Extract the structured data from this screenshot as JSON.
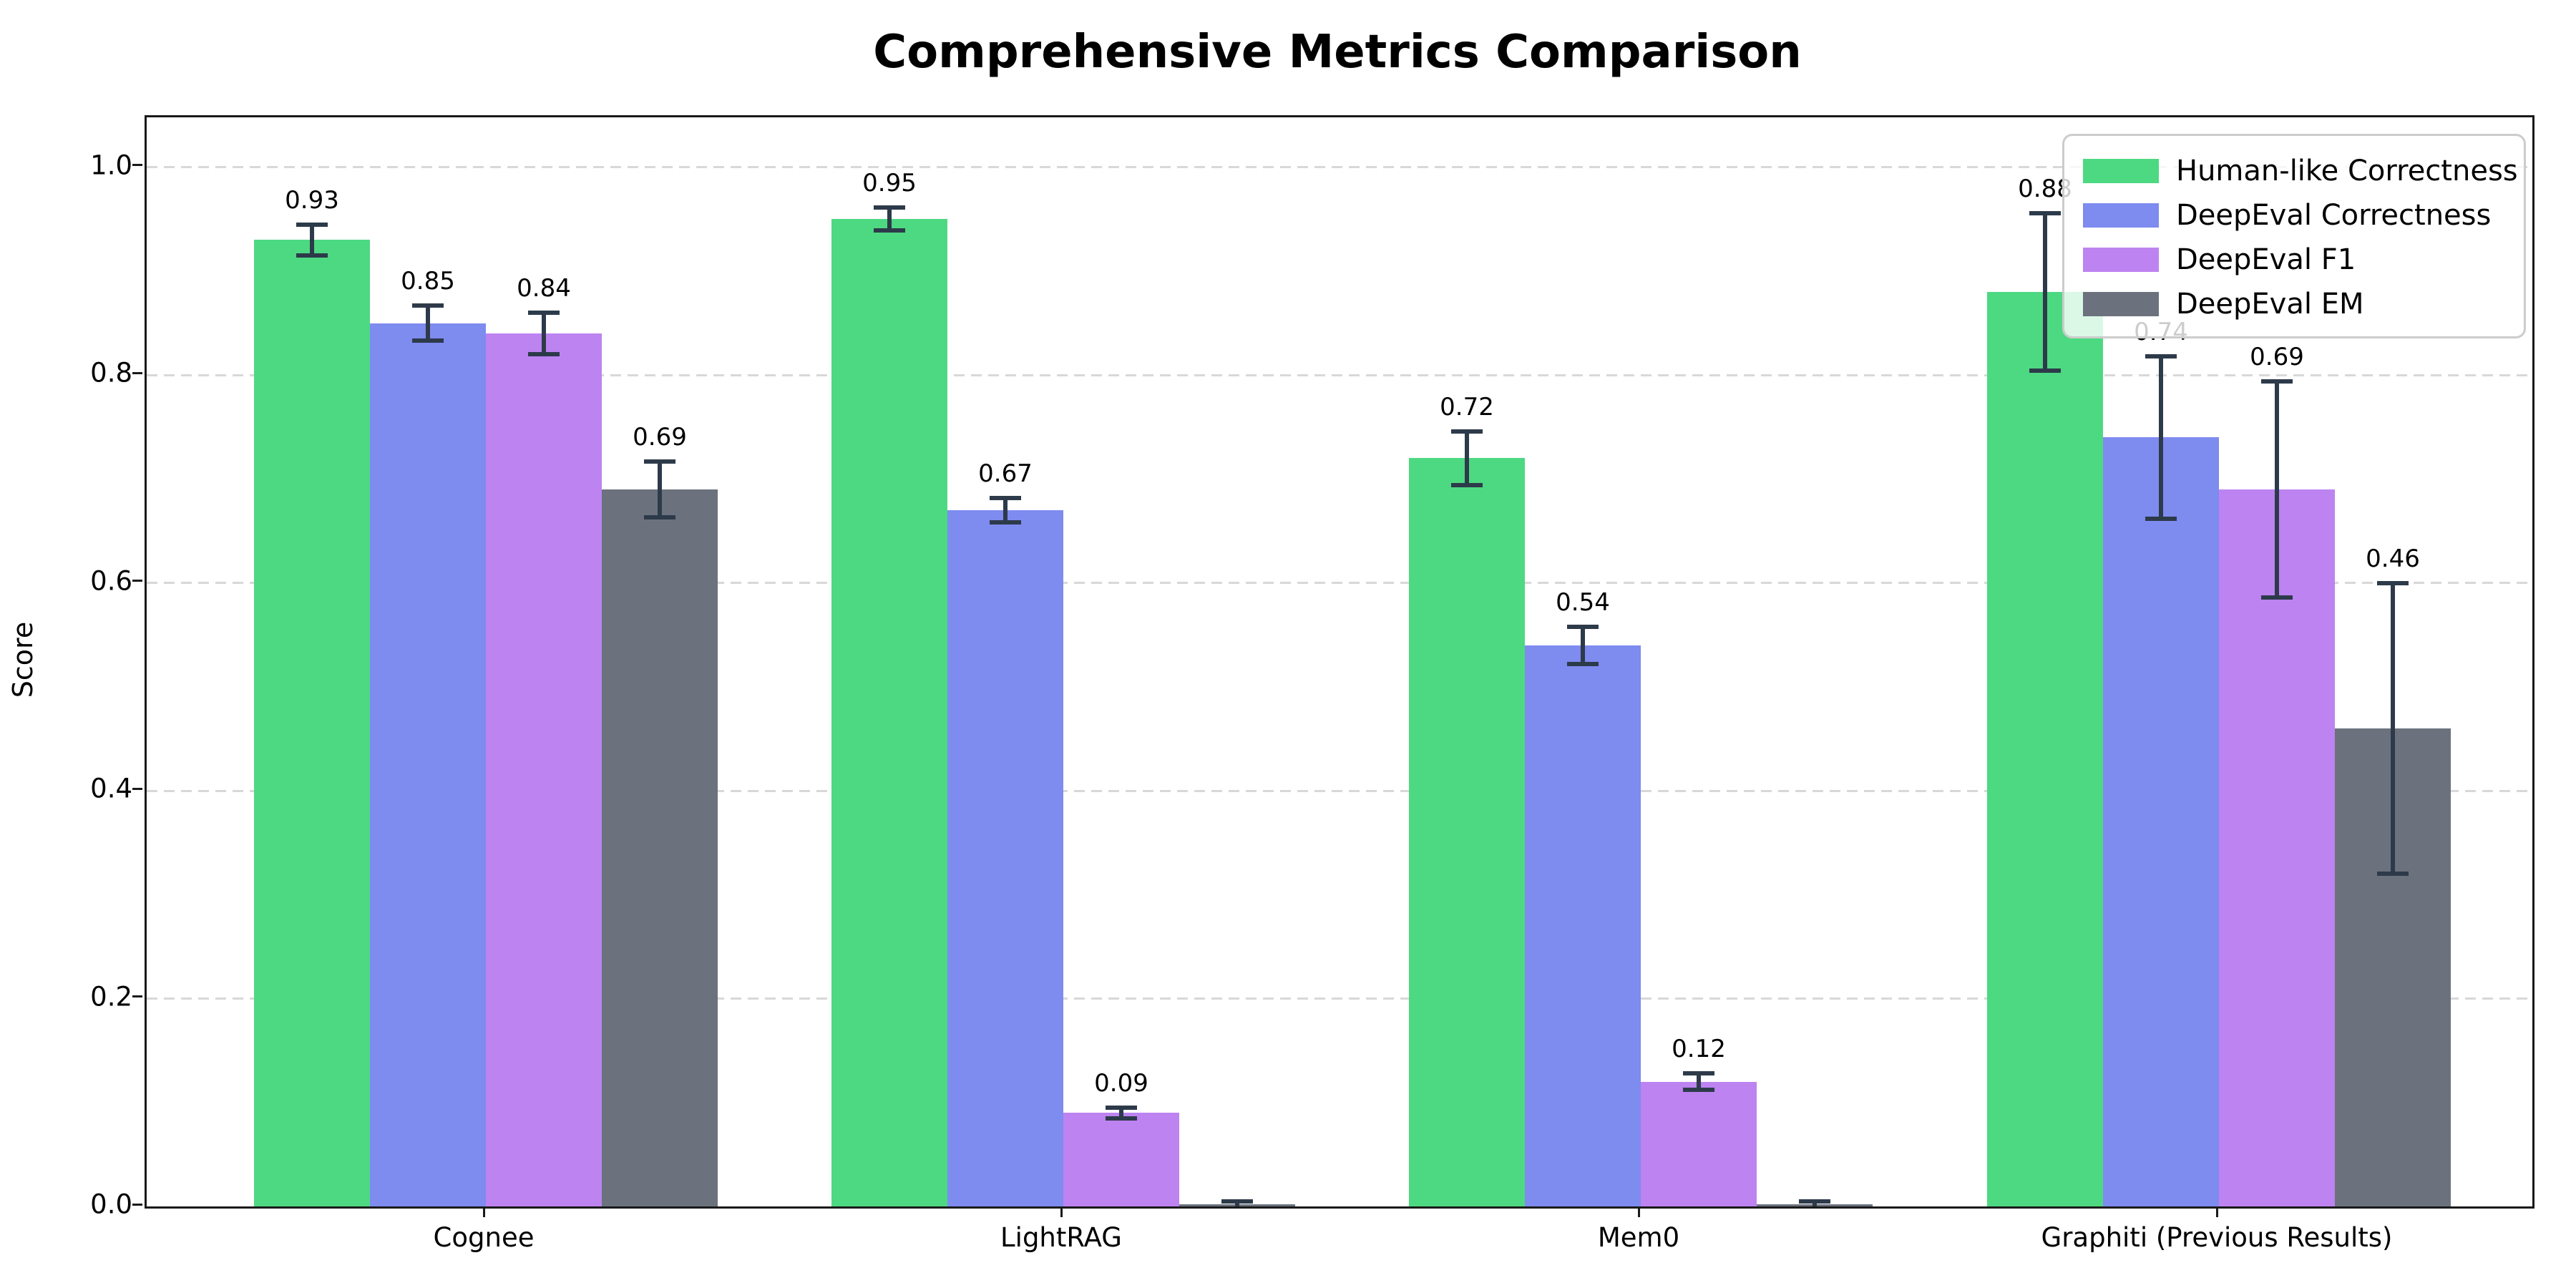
{
  "title": "Comprehensive Metrics Comparison",
  "chart_data": {
    "type": "bar",
    "title": "Comprehensive Metrics Comparison",
    "xlabel": "",
    "ylabel": "Score",
    "ylim": [
      0,
      1.048
    ],
    "yticks": [
      "0.0",
      "0.2",
      "0.4",
      "0.6",
      "0.8",
      "1.0"
    ],
    "grid": "horizontal dashed",
    "legend_position": "upper right",
    "categories": [
      "Cognee",
      "LightRAG",
      "Mem0",
      "Graphiti (Previous Results)"
    ],
    "series": [
      {
        "name": "Human-like Correctness",
        "color": "#4dd981",
        "values": [
          0.93,
          0.95,
          0.72,
          0.88
        ],
        "errors": [
          0.015,
          0.011,
          0.026,
          0.076
        ],
        "labels": [
          "0.93",
          "0.95",
          "0.72",
          "0.88"
        ]
      },
      {
        "name": "DeepEval Correctness",
        "color": "#7e8bef",
        "values": [
          0.85,
          0.67,
          0.54,
          0.74
        ],
        "errors": [
          0.017,
          0.012,
          0.018,
          0.078
        ],
        "labels": [
          "0.85",
          "0.67",
          "0.54",
          "0.74"
        ]
      },
      {
        "name": "DeepEval F1",
        "color": "#bd83f1",
        "values": [
          0.84,
          0.09,
          0.12,
          0.69
        ],
        "errors": [
          0.02,
          0.005,
          0.008,
          0.104
        ],
        "labels": [
          "0.84",
          "0.09",
          "0.12",
          "0.69"
        ]
      },
      {
        "name": "DeepEval EM",
        "color": "#6b727d",
        "values": [
          0.69,
          0.002,
          0.002,
          0.46
        ],
        "errors": [
          0.027,
          0.003,
          0.003,
          0.14
        ],
        "labels": [
          "0.69",
          "",
          "",
          "0.46"
        ]
      }
    ]
  },
  "style": {
    "error_bar_color": "#2d3a4a",
    "grid_color": "#d8d8d8",
    "spine_color": "#1a1a1a",
    "legend_border_color": "#cccccc"
  }
}
